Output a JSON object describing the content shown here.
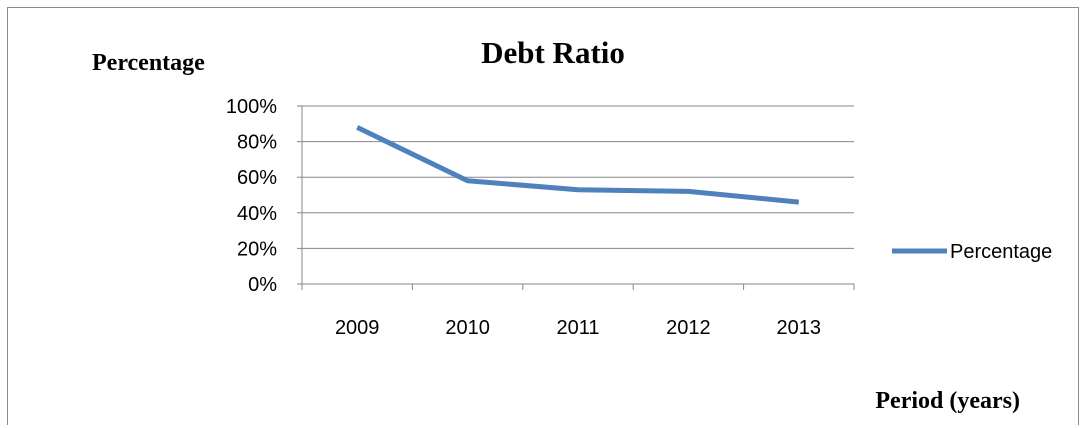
{
  "chart_data": {
    "type": "line",
    "title": "Debt Ratio",
    "ylabel": "Percentage",
    "xlabel": "Period (years)",
    "categories": [
      "2009",
      "2010",
      "2011",
      "2012",
      "2013"
    ],
    "series": [
      {
        "name": "Percentage",
        "values": [
          88,
          58,
          53,
          52,
          46
        ],
        "color": "#4f81bd"
      }
    ],
    "ylim": [
      0,
      100
    ],
    "yticks": [
      "0%",
      "20%",
      "40%",
      "60%",
      "80%",
      "100%"
    ],
    "grid": true,
    "legend_position": "right"
  }
}
